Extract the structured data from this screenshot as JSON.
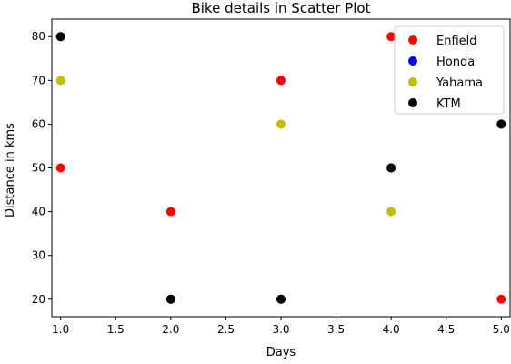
{
  "chart_data": {
    "type": "scatter",
    "title": "Bike details in Scatter Plot",
    "xlabel": "Days",
    "ylabel": "Distance in kms",
    "xlim": [
      0.92,
      5.08
    ],
    "ylim": [
      16,
      84
    ],
    "xticks": [
      1.0,
      1.5,
      2.0,
      2.5,
      3.0,
      3.5,
      4.0,
      4.5,
      5.0
    ],
    "xtick_labels": [
      "1.0",
      "1.5",
      "2.0",
      "2.5",
      "3.0",
      "3.5",
      "4.0",
      "4.5",
      "5.0"
    ],
    "yticks": [
      20,
      30,
      40,
      50,
      60,
      70,
      80
    ],
    "ytick_labels": [
      "20",
      "30",
      "40",
      "50",
      "60",
      "70",
      "80"
    ],
    "grid": false,
    "legend_position": "top-right",
    "series": [
      {
        "name": "Enfield",
        "color": "#ff0000",
        "points": [
          [
            1,
            50
          ],
          [
            2,
            40
          ],
          [
            3,
            70
          ],
          [
            4,
            80
          ],
          [
            5,
            20
          ]
        ]
      },
      {
        "name": "Honda",
        "color": "#0000ff",
        "points": [
          [
            1,
            80
          ],
          [
            2,
            20
          ],
          [
            3,
            20
          ],
          [
            4,
            50
          ],
          [
            5,
            60
          ]
        ]
      },
      {
        "name": "Yahama",
        "color": "#bfbf00",
        "points": [
          [
            1,
            70
          ],
          [
            3,
            60
          ],
          [
            4,
            40
          ]
        ]
      },
      {
        "name": "KTM",
        "color": "#000000",
        "points": [
          [
            1,
            80
          ],
          [
            2,
            20
          ],
          [
            3,
            20
          ],
          [
            4,
            50
          ],
          [
            5,
            60
          ]
        ]
      }
    ]
  }
}
